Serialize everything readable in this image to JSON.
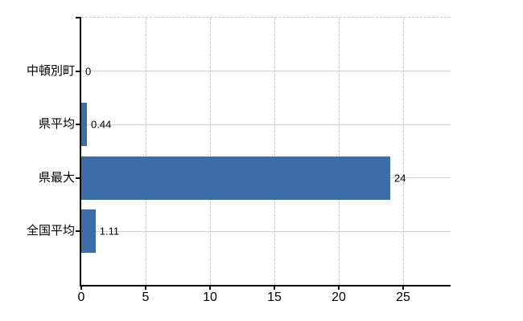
{
  "chart_data": {
    "type": "bar",
    "orientation": "horizontal",
    "title": "",
    "xlabel": "",
    "ylabel": "",
    "categories": [
      "中頓別町",
      "県平均",
      "県最大",
      "全国平均"
    ],
    "values": [
      0,
      0.44,
      24,
      1.11
    ],
    "value_labels": [
      "0",
      "0.44",
      "24",
      "1.11"
    ],
    "x_tick_labels": [
      "0",
      "5",
      "10",
      "15",
      "20",
      "25"
    ],
    "x_tick_values": [
      0,
      5,
      10,
      15,
      20,
      25
    ],
    "xlim": [
      0,
      28.7
    ],
    "grid": "on",
    "grid_vertical_style": "dashed",
    "grid_horizontal_style": "solid",
    "legend_position": "none",
    "colors": {
      "bar": "#3c6da6",
      "axis": "#000000",
      "grid_vertical": "#cccccc",
      "grid_horizontal": "#ccd4cc",
      "text": "#000000"
    }
  }
}
